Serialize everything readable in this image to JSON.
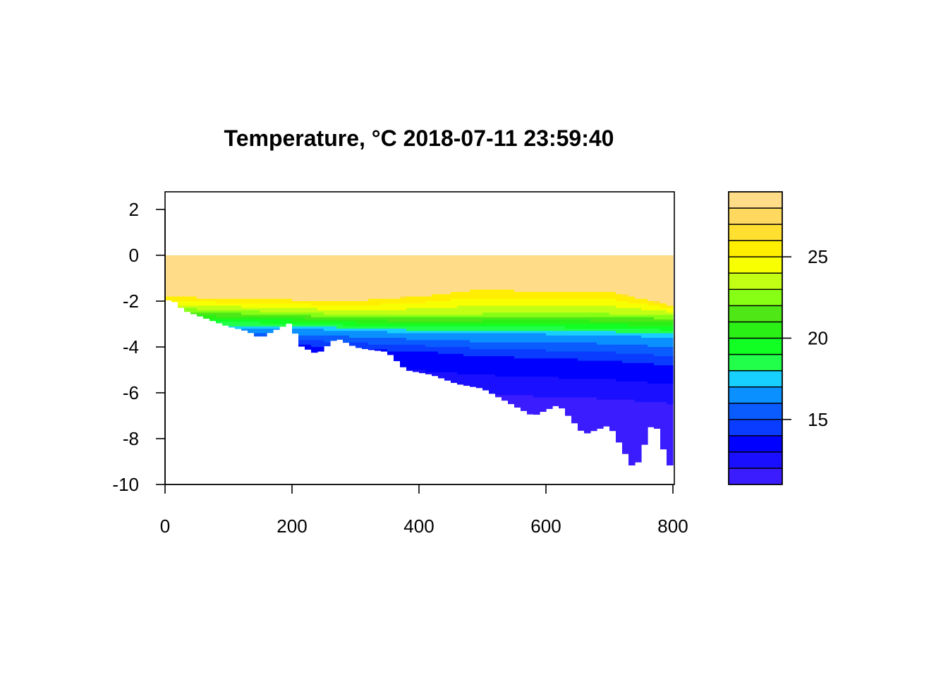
{
  "chart_data": {
    "type": "heatmap",
    "title": "Temperature, °C 2018-07-11 23:59:40",
    "xlabel": "",
    "ylabel": "",
    "xlim": [
      0,
      800
    ],
    "ylim": [
      -10,
      2.8
    ],
    "x_ticks": [
      0,
      200,
      400,
      600,
      800
    ],
    "y_ticks": [
      2,
      0,
      -2,
      -4,
      -6,
      -8,
      -10
    ],
    "depth_profile": {
      "x": [
        0,
        10,
        30,
        60,
        80,
        100,
        130,
        150,
        170,
        200,
        210,
        240,
        270,
        300,
        320,
        350,
        380,
        420,
        460,
        500,
        540,
        580,
        620,
        660,
        700,
        740,
        770,
        790,
        800
      ],
      "bottom": [
        -2.0,
        -1.9,
        -2.4,
        -2.7,
        -2.9,
        -3.1,
        -3.3,
        -3.6,
        -3.3,
        -2.9,
        -3.9,
        -4.3,
        -3.6,
        -4.0,
        -4.1,
        -4.2,
        -5.0,
        -5.2,
        -5.6,
        -5.8,
        -6.4,
        -7.0,
        -6.5,
        -7.8,
        -7.4,
        -9.4,
        -7.1,
        -8.9,
        -9.4
      ]
    },
    "isotherm_depths": {
      "x": [
        0,
        100,
        200,
        300,
        400,
        500,
        600,
        700,
        800
      ],
      "t26": [
        -1.8,
        -1.9,
        -1.95,
        -2.0,
        -1.8,
        -1.5,
        -1.6,
        -1.6,
        -2.2
      ],
      "t23": [
        -2.3,
        -2.4,
        -2.5,
        -2.6,
        -2.6,
        -2.55,
        -2.5,
        -2.55,
        -2.6
      ],
      "t17": [
        -3.1,
        -3.2,
        -3.2,
        -3.3,
        -3.4,
        -3.45,
        -3.45,
        -3.5,
        -3.6
      ],
      "t14": [
        -3.8,
        -3.8,
        -3.9,
        -4.1,
        -4.2,
        -4.4,
        -4.5,
        -4.6,
        -4.8
      ]
    },
    "colorbar": {
      "levels": [
        11,
        12,
        13,
        14,
        15,
        16,
        17,
        18,
        19,
        20,
        21,
        22,
        23,
        24,
        25,
        26,
        27,
        28,
        29
      ],
      "colors": [
        "#3a1cff",
        "#1a0fff",
        "#0000ff",
        "#0a3cff",
        "#0a5cff",
        "#0a90ff",
        "#18d0ff",
        "#22ff4a",
        "#11ff22",
        "#2af016",
        "#4fe816",
        "#86ff14",
        "#c3ff14",
        "#f8ff00",
        "#ffee00",
        "#ffe030",
        "#ffd860",
        "#ffdd88",
        "#ffd9a0"
      ],
      "ticks": [
        15,
        20,
        25
      ]
    }
  }
}
